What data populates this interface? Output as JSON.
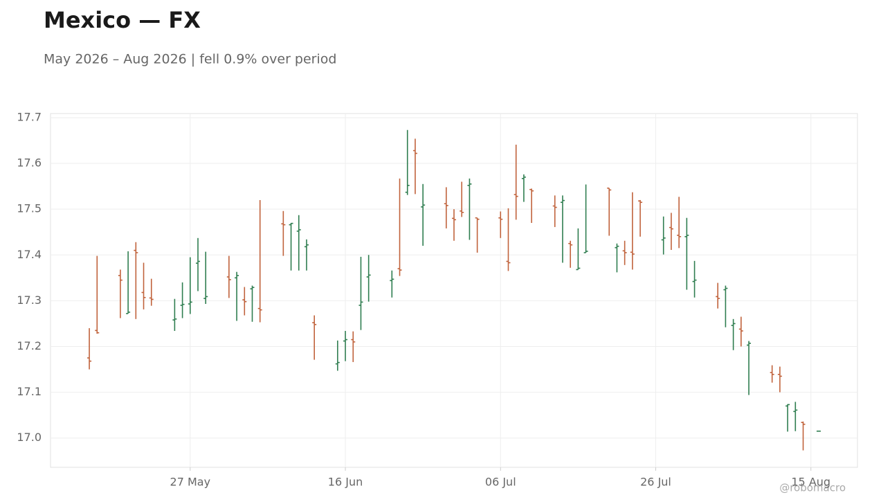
{
  "chart_data": {
    "type": "ohlc",
    "title": "Mexico — FX",
    "subtitle": "May 2026 – Aug 2026 | fell 0.9% over period",
    "watermark": "@robomacro",
    "up_color": "#2e7d4f",
    "down_color": "#c0623b",
    "grid": true,
    "x": [
      "2026-05-14",
      "2026-05-15",
      "2026-05-18",
      "2026-05-19",
      "2026-05-20",
      "2026-05-21",
      "2026-05-22",
      "2026-05-25",
      "2026-05-26",
      "2026-05-27",
      "2026-05-28",
      "2026-05-29",
      "2026-06-01",
      "2026-06-02",
      "2026-06-03",
      "2026-06-04",
      "2026-06-05",
      "2026-06-08",
      "2026-06-09",
      "2026-06-10",
      "2026-06-11",
      "2026-06-12",
      "2026-06-15",
      "2026-06-16",
      "2026-06-17",
      "2026-06-18",
      "2026-06-19",
      "2026-06-22",
      "2026-06-23",
      "2026-06-24",
      "2026-06-25",
      "2026-06-26",
      "2026-06-29",
      "2026-06-30",
      "2026-07-01",
      "2026-07-02",
      "2026-07-03",
      "2026-07-06",
      "2026-07-07",
      "2026-07-08",
      "2026-07-09",
      "2026-07-10",
      "2026-07-13",
      "2026-07-14",
      "2026-07-15",
      "2026-07-16",
      "2026-07-17",
      "2026-07-20",
      "2026-07-21",
      "2026-07-22",
      "2026-07-23",
      "2026-07-24",
      "2026-07-27",
      "2026-07-28",
      "2026-07-29",
      "2026-07-30",
      "2026-07-31",
      "2026-08-03",
      "2026-08-04",
      "2026-08-05",
      "2026-08-06",
      "2026-08-07",
      "2026-08-10",
      "2026-08-11",
      "2026-08-12",
      "2026-08-13",
      "2026-08-14",
      "2026-08-16"
    ],
    "open": [
      17.175,
      17.235,
      17.355,
      17.272,
      17.41,
      17.318,
      17.306,
      17.258,
      17.29,
      17.293,
      17.382,
      17.305,
      17.352,
      17.35,
      17.302,
      17.326,
      17.283,
      17.468,
      17.466,
      17.452,
      17.418,
      17.252,
      17.162,
      17.212,
      17.215,
      17.29,
      17.352,
      17.344,
      17.37,
      17.537,
      17.628,
      17.505,
      17.512,
      17.48,
      17.496,
      17.552,
      17.481,
      17.481,
      17.386,
      17.532,
      17.567,
      17.543,
      17.507,
      17.515,
      17.425,
      17.368,
      17.405,
      17.546,
      17.416,
      17.409,
      17.406,
      17.518,
      17.433,
      17.46,
      17.443,
      17.44,
      17.342,
      17.309,
      17.324,
      17.246,
      17.238,
      17.203,
      17.143,
      17.139,
      17.07,
      17.058,
      17.034,
      17.015
    ],
    "high": [
      17.24,
      17.398,
      17.368,
      17.408,
      17.428,
      17.383,
      17.348,
      17.304,
      17.34,
      17.395,
      17.437,
      17.407,
      17.398,
      17.363,
      17.33,
      17.333,
      17.52,
      17.496,
      17.47,
      17.487,
      17.434,
      17.268,
      17.213,
      17.234,
      17.233,
      17.396,
      17.4,
      17.366,
      17.567,
      17.673,
      17.654,
      17.555,
      17.548,
      17.5,
      17.56,
      17.567,
      17.481,
      17.495,
      17.502,
      17.641,
      17.576,
      17.545,
      17.53,
      17.53,
      17.431,
      17.458,
      17.554,
      17.546,
      17.425,
      17.431,
      17.537,
      17.52,
      17.484,
      17.492,
      17.527,
      17.481,
      17.387,
      17.339,
      17.333,
      17.26,
      17.265,
      17.212,
      17.159,
      17.156,
      17.074,
      17.079,
      17.036,
      17.016
    ],
    "low": [
      17.15,
      17.228,
      17.262,
      17.272,
      17.26,
      17.281,
      17.289,
      17.234,
      17.262,
      17.271,
      17.321,
      17.293,
      17.306,
      17.256,
      17.268,
      17.254,
      17.253,
      17.398,
      17.366,
      17.366,
      17.366,
      17.171,
      17.147,
      17.168,
      17.166,
      17.236,
      17.298,
      17.307,
      17.354,
      17.531,
      17.533,
      17.42,
      17.458,
      17.431,
      17.483,
      17.433,
      17.405,
      17.437,
      17.365,
      17.477,
      17.516,
      17.47,
      17.461,
      17.383,
      17.372,
      17.368,
      17.405,
      17.442,
      17.362,
      17.378,
      17.368,
      17.44,
      17.401,
      17.411,
      17.415,
      17.324,
      17.307,
      17.283,
      17.242,
      17.192,
      17.2,
      17.094,
      17.121,
      17.1,
      17.014,
      17.015,
      16.973,
      17.014
    ],
    "close": [
      17.168,
      17.23,
      17.345,
      17.275,
      17.405,
      17.307,
      17.303,
      17.26,
      17.292,
      17.297,
      17.386,
      17.309,
      17.346,
      17.355,
      17.298,
      17.329,
      17.28,
      17.466,
      17.469,
      17.455,
      17.422,
      17.248,
      17.165,
      17.215,
      17.21,
      17.297,
      17.356,
      17.347,
      17.367,
      17.552,
      17.622,
      17.509,
      17.508,
      17.477,
      17.493,
      17.555,
      17.478,
      17.478,
      17.383,
      17.528,
      17.57,
      17.54,
      17.504,
      17.519,
      17.422,
      17.371,
      17.408,
      17.542,
      17.419,
      17.405,
      17.402,
      17.515,
      17.437,
      17.457,
      17.44,
      17.443,
      17.345,
      17.305,
      17.327,
      17.25,
      17.234,
      17.207,
      17.139,
      17.135,
      17.073,
      17.061,
      17.03,
      17.015
    ],
    "xlim": [
      "2026-05-09",
      "2026-08-21"
    ],
    "xticks": [
      {
        "value": "2026-05-27",
        "label": "27 May"
      },
      {
        "value": "2026-06-16",
        "label": "16 Jun"
      },
      {
        "value": "2026-07-06",
        "label": "06 Jul"
      },
      {
        "value": "2026-07-26",
        "label": "26 Jul"
      },
      {
        "value": "2026-08-15",
        "label": "15 Aug"
      }
    ],
    "ylim": [
      16.936,
      17.709
    ],
    "yticks": [
      {
        "value": 17,
        "label": "17.0"
      },
      17.1,
      17.2,
      17.3,
      17.4,
      17.5,
      17.6,
      17.7
    ]
  }
}
